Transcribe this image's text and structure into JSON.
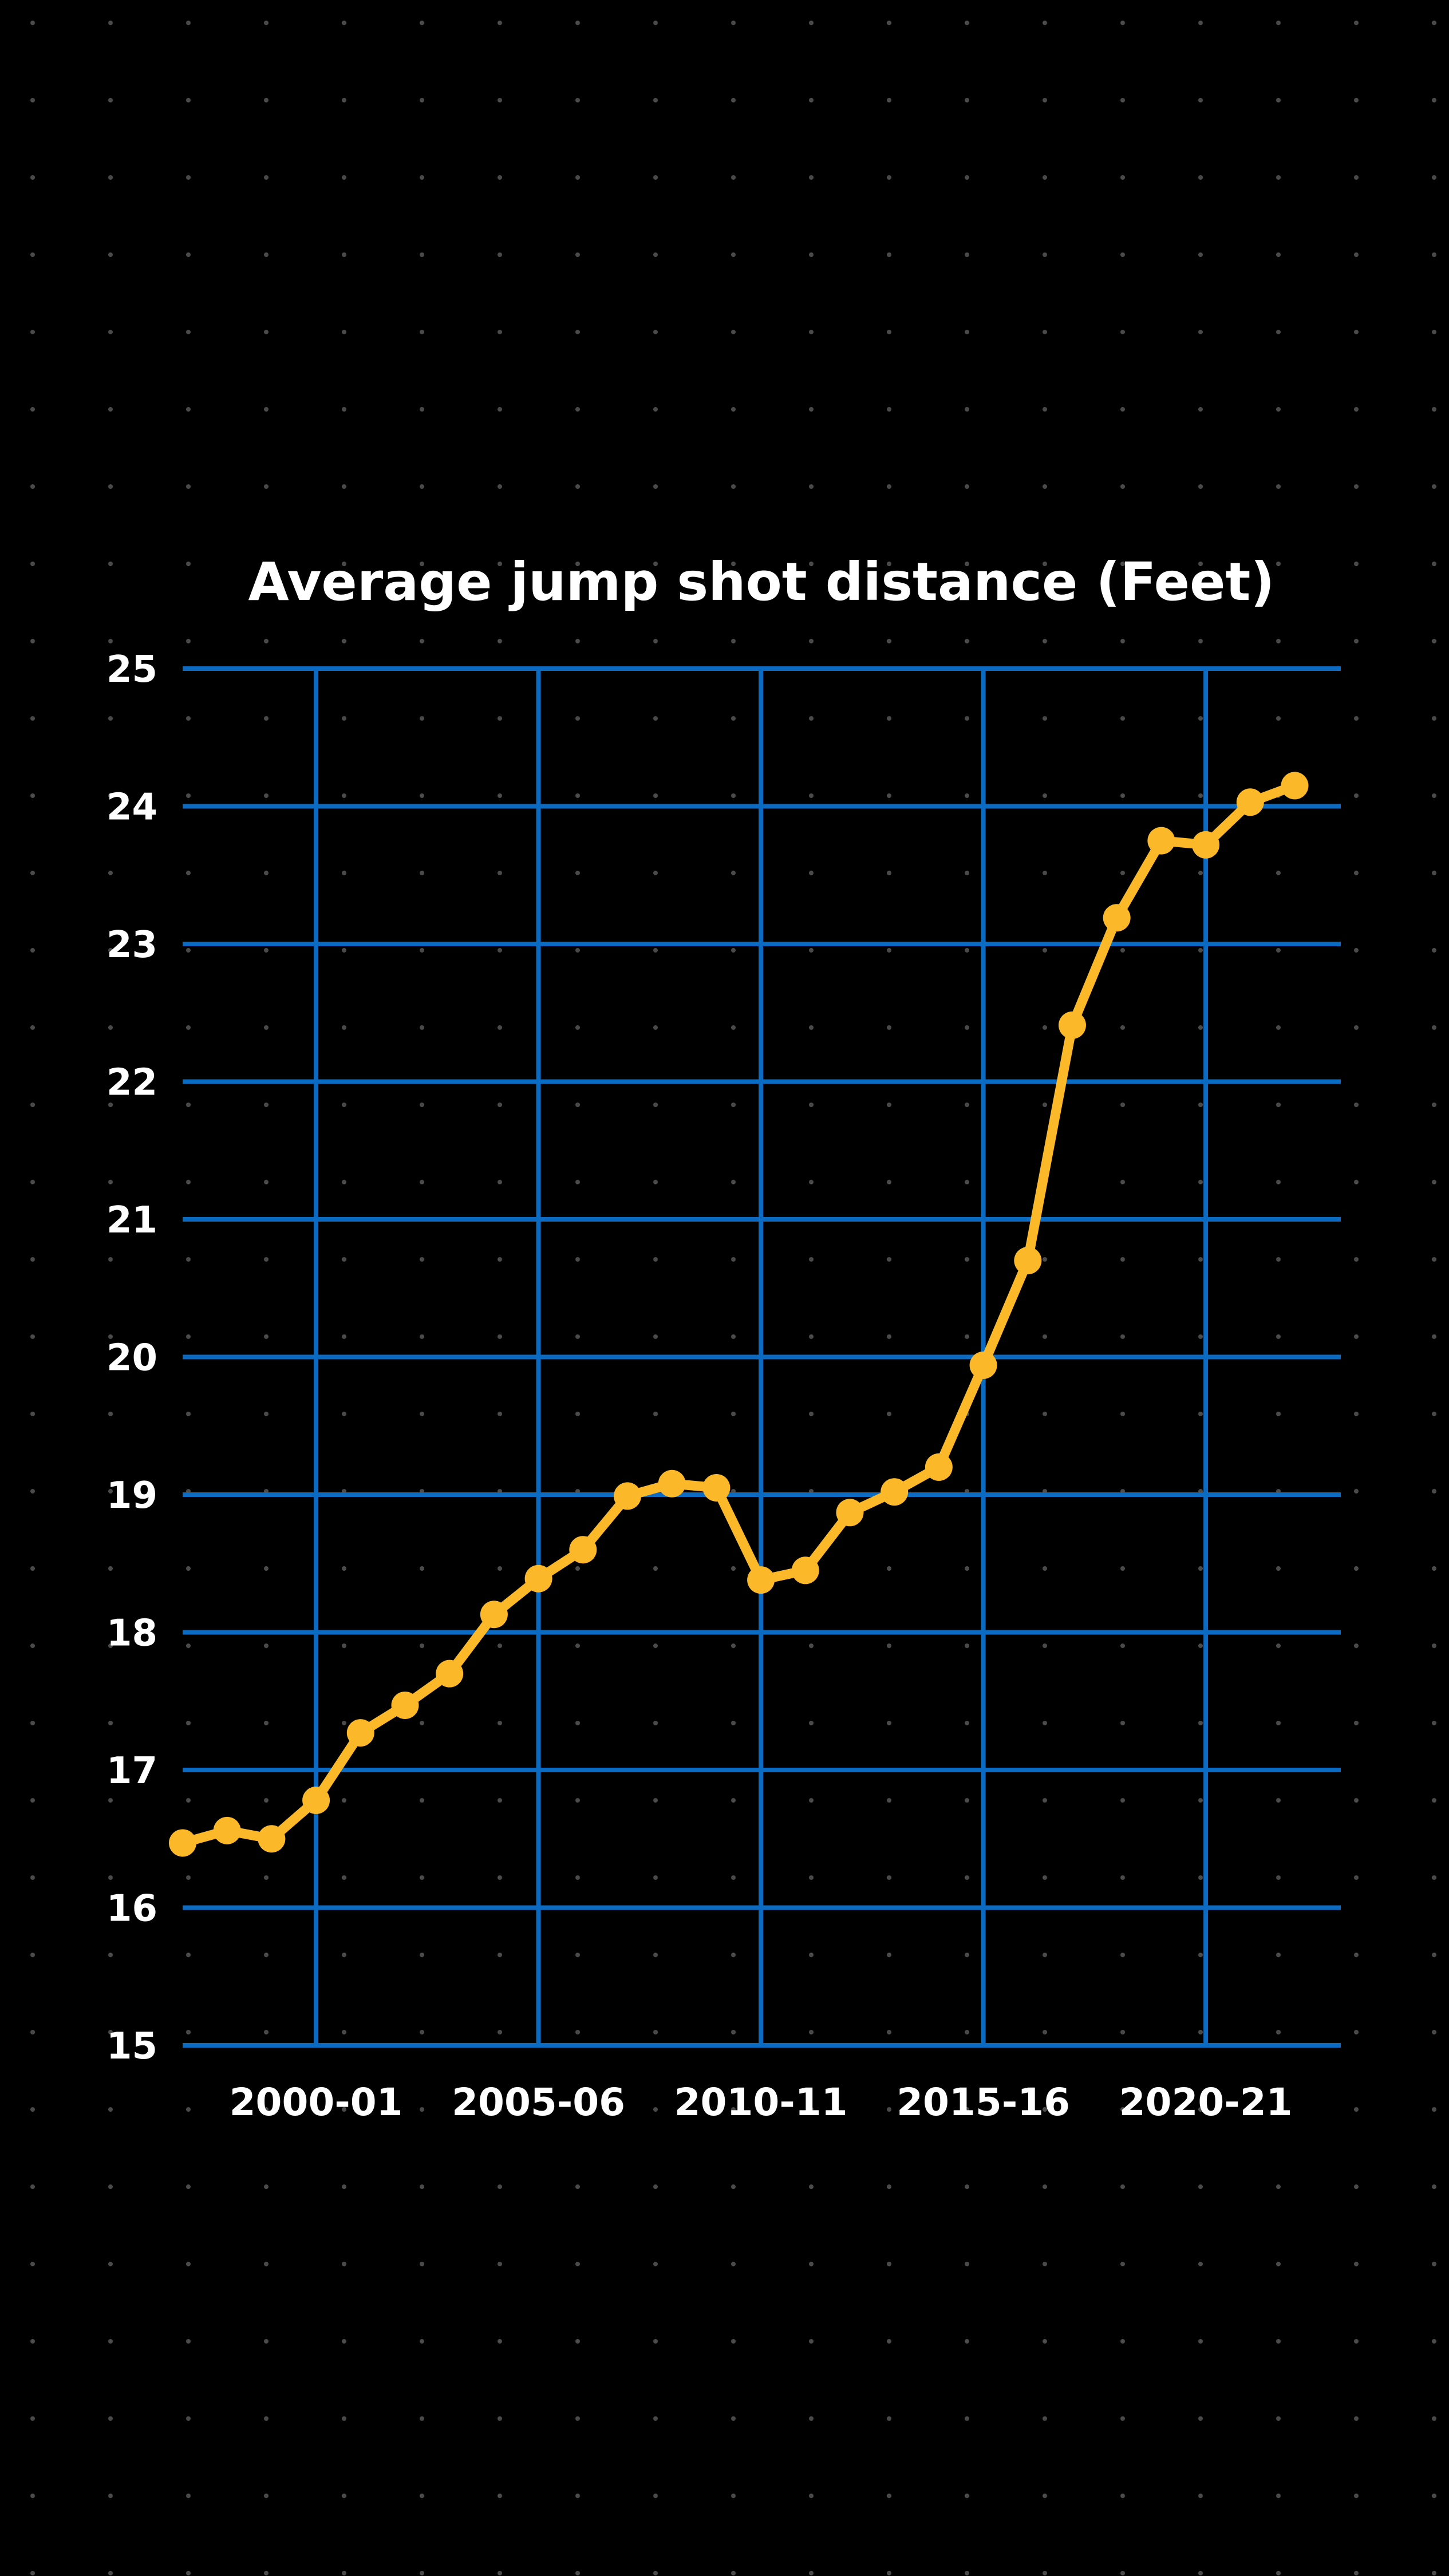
{
  "colors": {
    "background": "#000000",
    "grid": "#0b6bc2",
    "line": "#fbb829",
    "dots": "#555555"
  },
  "chart_data": {
    "type": "line",
    "title": "Average jump shot distance (Feet)",
    "xlabel": "",
    "ylabel": "",
    "ylim": [
      15,
      25
    ],
    "yticks": [
      15,
      16,
      17,
      18,
      19,
      20,
      21,
      22,
      23,
      24,
      25
    ],
    "xtick_labels": [
      "2000-01",
      "2005-06",
      "2010-11",
      "2015-16",
      "2020-21"
    ],
    "grid": true,
    "legend": "none",
    "x": [
      "1997-98",
      "1998-99",
      "1999-00",
      "2000-01",
      "2001-02",
      "2002-03",
      "2003-04",
      "2004-05",
      "2005-06",
      "2006-07",
      "2007-08",
      "2008-09",
      "2009-10",
      "2010-11",
      "2011-12",
      "2012-13",
      "2013-14",
      "2014-15",
      "2015-16",
      "2016-17",
      "2017-18",
      "2018-19",
      "2019-20",
      "2020-21",
      "2021-22",
      "2022-23"
    ],
    "series": [
      {
        "name": "Average jump shot distance",
        "values": [
          16.47,
          16.56,
          16.5,
          16.78,
          17.27,
          17.47,
          17.7,
          18.13,
          18.39,
          18.6,
          18.99,
          19.08,
          19.05,
          18.38,
          18.45,
          18.87,
          19.02,
          19.2,
          19.94,
          20.7,
          22.41,
          23.19,
          23.75,
          23.72,
          24.03,
          24.15
        ]
      }
    ]
  }
}
